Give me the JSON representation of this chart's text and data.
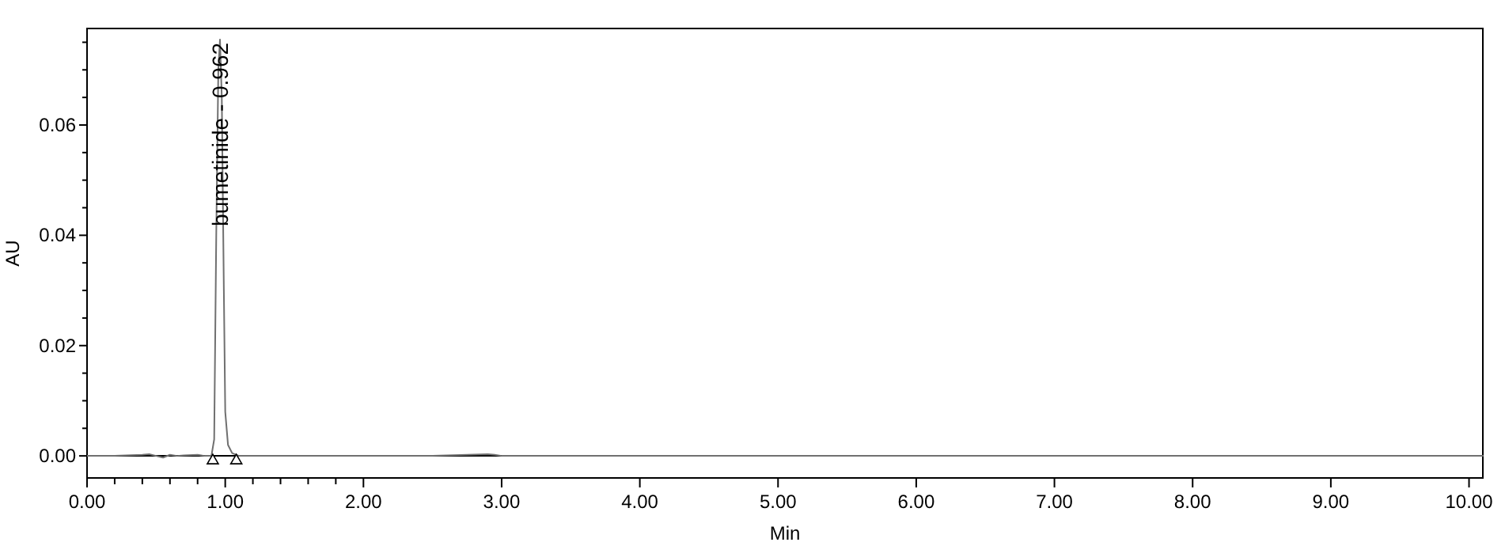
{
  "chart_data": {
    "type": "line",
    "xlabel": "Min",
    "ylabel": "AU",
    "x": [
      0,
      0.2,
      0.4,
      0.45,
      0.5,
      0.55,
      0.6,
      0.65,
      0.7,
      0.8,
      0.85,
      0.9,
      0.92,
      0.935,
      0.95,
      0.962,
      0.975,
      0.99,
      1.0,
      1.02,
      1.05,
      1.1,
      1.3,
      1.6,
      2.0,
      2.5,
      2.9,
      2.95,
      3.0,
      3.5,
      4.0,
      5.0,
      6.0,
      7.0,
      8.0,
      9.0,
      10.0,
      10.1
    ],
    "series": [
      {
        "color": "#707070",
        "values": [
          0,
          0,
          0.0002,
          0.0003,
          0,
          -0.0003,
          0.0002,
          0,
          0.0001,
          0.0002,
          0,
          0,
          0.003,
          0.04,
          0.07,
          0.0755,
          0.065,
          0.03,
          0.008,
          0.002,
          0.0005,
          0,
          0,
          0,
          0,
          0,
          0.0003,
          0.0002,
          0,
          0,
          0,
          0,
          0,
          0,
          0,
          0,
          0,
          0
        ]
      }
    ],
    "xlim": [
      0,
      10.1
    ],
    "ylim": [
      -0.004,
      0.0775
    ],
    "xticks": [
      {
        "value": 0,
        "label": "0.00"
      },
      {
        "value": 0.2,
        "label": null
      },
      {
        "value": 0.4,
        "label": null
      },
      {
        "value": 0.6,
        "label": null
      },
      {
        "value": 0.8,
        "label": null
      },
      {
        "value": 1,
        "label": "1.00"
      },
      {
        "value": 1.2,
        "label": null
      },
      {
        "value": 1.4,
        "label": null
      },
      {
        "value": 1.6,
        "label": null
      },
      {
        "value": 1.8,
        "label": null
      },
      {
        "value": 2,
        "label": "2.00"
      },
      {
        "value": 3,
        "label": "3.00"
      },
      {
        "value": 4,
        "label": "4.00"
      },
      {
        "value": 5,
        "label": "5.00"
      },
      {
        "value": 6,
        "label": "6.00"
      },
      {
        "value": 7,
        "label": "7.00"
      },
      {
        "value": 8,
        "label": "8.00"
      },
      {
        "value": 9,
        "label": "9.00"
      },
      {
        "value": 10,
        "label": "10.00"
      }
    ],
    "yticks": [
      {
        "value": 0,
        "label": "0.00"
      },
      {
        "value": 0.005,
        "label": null
      },
      {
        "value": 0.01,
        "label": null
      },
      {
        "value": 0.015,
        "label": null
      },
      {
        "value": 0.02,
        "label": "0.02"
      },
      {
        "value": 0.025,
        "label": null
      },
      {
        "value": 0.03,
        "label": null
      },
      {
        "value": 0.035,
        "label": null
      },
      {
        "value": 0.04,
        "label": "0.04"
      },
      {
        "value": 0.045,
        "label": null
      },
      {
        "value": 0.05,
        "label": null
      },
      {
        "value": 0.055,
        "label": null
      },
      {
        "value": 0.06,
        "label": "0.06"
      },
      {
        "value": 0.065,
        "label": null
      },
      {
        "value": 0.07,
        "label": null
      },
      {
        "value": 0.075,
        "label": null
      }
    ],
    "ref_lines": [
      {
        "axis": "y",
        "value": 0,
        "color": "#000000"
      }
    ],
    "annotations": [
      {
        "text": "bumetinide - 0.962",
        "x": 0.962,
        "y": 0.0755
      }
    ],
    "grid": false
  }
}
